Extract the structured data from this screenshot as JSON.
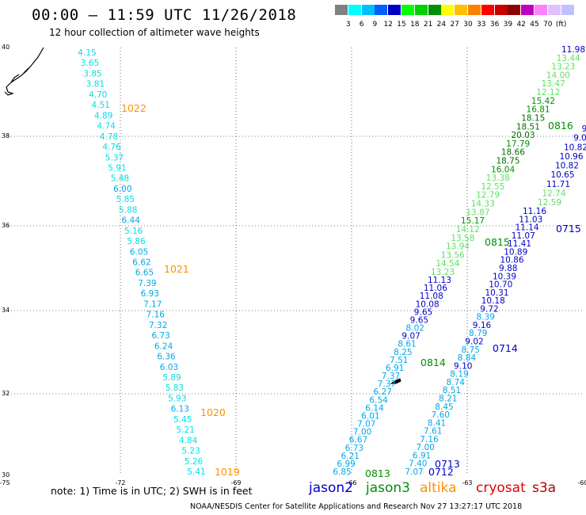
{
  "title": "00:00 — 11:59 UTC 11/26/2018",
  "subtitle": "12 hour collection of altimeter wave heights",
  "colorbar": {
    "colors": [
      "#808080",
      "#00ffff",
      "#00bfff",
      "#0060ff",
      "#0000c8",
      "#00ff00",
      "#00d000",
      "#009000",
      "#ffff00",
      "#ffc000",
      "#ff8000",
      "#ff0000",
      "#c80000",
      "#900000",
      "#c000c0",
      "#ff80ff",
      "#e0c0ff",
      "#c0c0ff"
    ],
    "labels": [
      "3",
      "6",
      "9",
      "12",
      "15",
      "18",
      "21",
      "24",
      "27",
      "30",
      "33",
      "36",
      "39",
      "42",
      "45",
      "70",
      "(ft)"
    ]
  },
  "axes": {
    "lon_ticks": [
      "-75",
      "-72",
      "-69",
      "-66",
      "-63",
      "-60"
    ],
    "lat_ticks": [
      "40",
      "38",
      "36",
      "34",
      "32",
      "30"
    ]
  },
  "tracks": {
    "cryosat_west": {
      "color": "#00d8ff",
      "values": [
        "4.15",
        "3.65",
        "3.85",
        "3.81",
        "4.70",
        "4.51",
        "4.89",
        "4.74",
        "4.78",
        "4.76",
        "5.37",
        "5.91",
        "5.48",
        "6.00",
        "5.85",
        "5.88",
        "6.44",
        "5.16",
        "5.86",
        "6.05",
        "6.62",
        "6.65",
        "7.39",
        "6.93",
        "7.17",
        "7.16",
        "7.32",
        "6.73",
        "6.24",
        "6.36",
        "6.03",
        "5.89",
        "5.83",
        "5.93",
        "6.13",
        "5.45",
        "5.21",
        "4.84",
        "5.23",
        "5.26",
        "5.41"
      ]
    },
    "jason3_west": {
      "lower_values": [
        "6.85",
        "6.99",
        "6.21",
        "6.73",
        "6.67",
        "7.00",
        "7.07",
        "6.01",
        "6.14",
        "6.54",
        "6.27",
        "7.37",
        "7.37",
        "6.91",
        "7.51",
        "8.25",
        "8.61",
        "9.07",
        "8.02",
        "9.65",
        "9.65",
        "10.08",
        "11.08",
        "11.06",
        "11.13"
      ],
      "upper_values": [
        "13.23",
        "14.54",
        "13.56",
        "13.94",
        "13.58",
        "14.12",
        "15.17",
        "13.87",
        "14.33",
        "12.79",
        "12.55",
        "13.38",
        "16.04",
        "18.75",
        "18.66",
        "17.79",
        "20.03",
        "18.51",
        "18.15",
        "16.81",
        "15.42",
        "12.12",
        "13.47",
        "14.00",
        "13.23",
        "13.44",
        "11.98"
      ]
    },
    "jason3_east": {
      "lower_values": [
        "7.07",
        "7.40",
        "6.91",
        "7.00",
        "7.16",
        "7.61",
        "8.41",
        "7.60",
        "8.45",
        "8.21",
        "8.51",
        "8.74",
        "8.19",
        "9.10",
        "8.84",
        "8.75",
        "9.02",
        "8.79",
        "9.16",
        "8.39",
        "9.72",
        "10.18",
        "10.31",
        "10.70",
        "10.39",
        "9.88",
        "10.86",
        "10.89",
        "11.41",
        "11.07",
        "11.14",
        "11.03",
        "11.16"
      ],
      "upper_values": [
        "12.59",
        "12.74",
        "11.71",
        "10.65",
        "10.82",
        "10.96",
        "10.82",
        "9.0",
        "9"
      ]
    },
    "time_labels": {
      "t1022": "1022",
      "t1021": "1021",
      "t1020": "1020",
      "t1019": "1019",
      "t0813": "0813",
      "t0814": "0814",
      "t0815": "0815",
      "t0816": "0816",
      "t0712": "0712",
      "t0713": "0713",
      "t0714": "0714",
      "t0715": "0715"
    }
  },
  "note": "note:  1) Time is in UTC;  2) SWH is in feet",
  "legend": [
    {
      "name": "jason2",
      "color": "#0000c8"
    },
    {
      "name": "jason3",
      "color": "#009000"
    },
    {
      "name": "altika",
      "color": "#ff9000"
    },
    {
      "name": "cryosat",
      "color": "#e00000"
    },
    {
      "name": "s3a",
      "color": "#b00000"
    }
  ],
  "footer": "NOAA/NESDIS Center for Satellite Applications and Research    Nov 27 13:27:17 UTC 2018"
}
